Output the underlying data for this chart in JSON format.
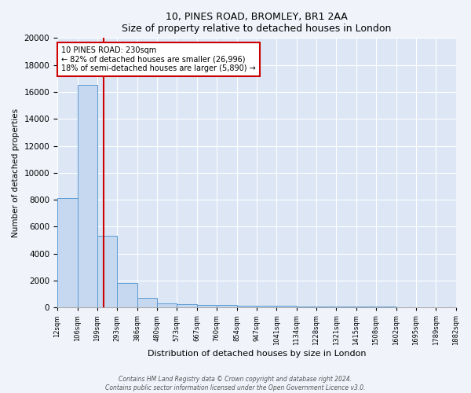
{
  "title": "10, PINES ROAD, BROMLEY, BR1 2AA",
  "subtitle": "Size of property relative to detached houses in London",
  "xlabel": "Distribution of detached houses by size in London",
  "ylabel": "Number of detached properties",
  "bin_labels": [
    "12sqm",
    "106sqm",
    "199sqm",
    "293sqm",
    "386sqm",
    "480sqm",
    "573sqm",
    "667sqm",
    "760sqm",
    "854sqm",
    "947sqm",
    "1041sqm",
    "1134sqm",
    "1228sqm",
    "1321sqm",
    "1415sqm",
    "1508sqm",
    "1602sqm",
    "1695sqm",
    "1789sqm",
    "1882sqm"
  ],
  "bin_edges": [
    12,
    106,
    199,
    293,
    386,
    480,
    573,
    667,
    760,
    854,
    947,
    1041,
    1134,
    1228,
    1321,
    1415,
    1508,
    1602,
    1695,
    1789,
    1882
  ],
  "bar_heights": [
    8100,
    16500,
    5300,
    1850,
    700,
    300,
    250,
    220,
    180,
    150,
    130,
    110,
    90,
    80,
    70,
    60,
    50,
    40,
    35,
    30
  ],
  "bar_color": "#c5d8f0",
  "bar_edge_color": "#5b9bd5",
  "bg_color": "#dce6f5",
  "grid_color": "#ffffff",
  "property_line_x": 230,
  "property_line_color": "#cc0000",
  "annotation_text": "10 PINES ROAD: 230sqm\n← 82% of detached houses are smaller (26,996)\n18% of semi-detached houses are larger (5,890) →",
  "annotation_box_color": "#ffffff",
  "annotation_box_edge": "#cc0000",
  "ylim": [
    0,
    20000
  ],
  "yticks": [
    0,
    2000,
    4000,
    6000,
    8000,
    10000,
    12000,
    14000,
    16000,
    18000,
    20000
  ],
  "fig_bg_color": "#f0f4fa",
  "footnote1": "Contains HM Land Registry data © Crown copyright and database right 2024.",
  "footnote2": "Contains public sector information licensed under the Open Government Licence v3.0."
}
